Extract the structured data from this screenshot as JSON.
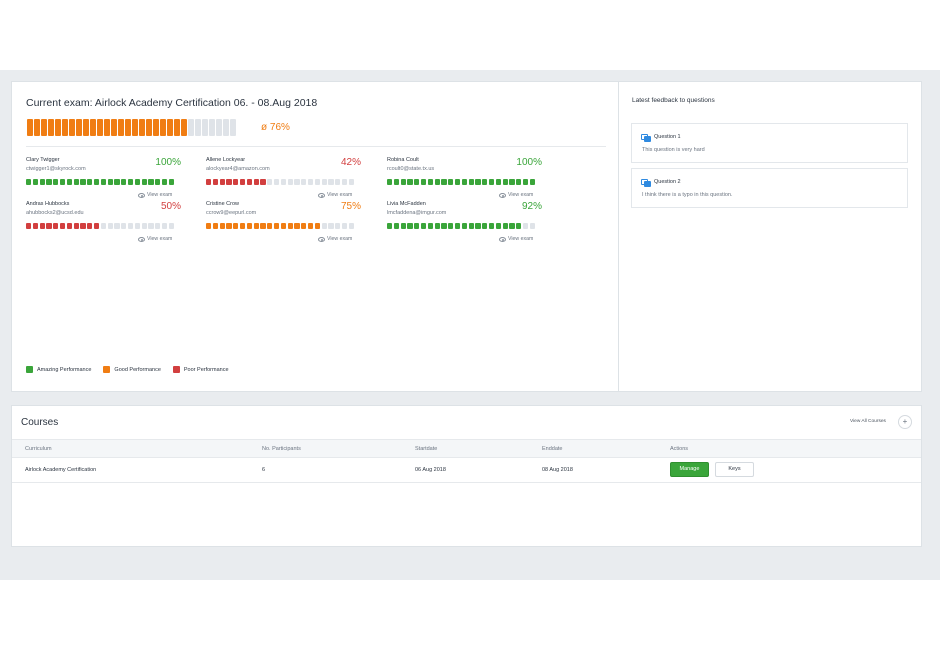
{
  "colors": {
    "amazing": "#3aa53a",
    "good": "#f07d13",
    "poor": "#d23f3f",
    "empty": "#dfe3e8",
    "band": "#e9ecef"
  },
  "exam": {
    "title": "Current exam: Airlock Academy Certification 06. - 08.Aug 2018",
    "average_label": "ø 76%",
    "average_fraction": 0.76,
    "average_level": "good"
  },
  "participants": [
    {
      "name": "Clary Twigger",
      "email": "ctwigger1@skyrock.com",
      "percent_label": "100%",
      "fraction": 1.0,
      "level": "amazing",
      "view_label": "View exam"
    },
    {
      "name": "Allene Lockyear",
      "email": "alockyear4@amazon.com",
      "percent_label": "42%",
      "fraction": 0.42,
      "level": "poor",
      "view_label": "View exam"
    },
    {
      "name": "Robina Coult",
      "email": "rcoult0@state.tx.us",
      "percent_label": "100%",
      "fraction": 1.0,
      "level": "amazing",
      "view_label": "View exam"
    },
    {
      "name": "Andras Hubbocks",
      "email": "ahubbocks2@ucsd.edu",
      "percent_label": "50%",
      "fraction": 0.5,
      "level": "poor",
      "view_label": "View exam"
    },
    {
      "name": "Cristine Crow",
      "email": "ccrow9@eepurl.com",
      "percent_label": "75%",
      "fraction": 0.75,
      "level": "good",
      "view_label": "View exam"
    },
    {
      "name": "Livia McFadden",
      "email": "lmcfaddena@imgur.com",
      "percent_label": "92%",
      "fraction": 0.92,
      "level": "amazing",
      "view_label": "View exam"
    }
  ],
  "legend": [
    {
      "label": "Amazing Performance",
      "level": "amazing"
    },
    {
      "label": "Good Performance",
      "level": "good"
    },
    {
      "label": "Poor Performance",
      "level": "poor"
    }
  ],
  "feedback": {
    "title": "Latest feedback to questions",
    "items": [
      {
        "question": "Question 1",
        "text": "This question is very hard"
      },
      {
        "question": "Question 2",
        "text": "I think there is a typo in this question."
      }
    ]
  },
  "courses": {
    "title": "Courses",
    "view_all": "View All Courses",
    "add_symbol": "+",
    "columns": [
      "Curriculum",
      "No. Participants",
      "Startdate",
      "Enddate",
      "Actions"
    ],
    "rows": [
      {
        "curriculum": "Airlock Academy Certification",
        "participants": "6",
        "startdate": "06 Aug 2018",
        "enddate": "08 Aug 2018",
        "manage_label": "Manage",
        "keys_label": "Keys"
      }
    ]
  }
}
